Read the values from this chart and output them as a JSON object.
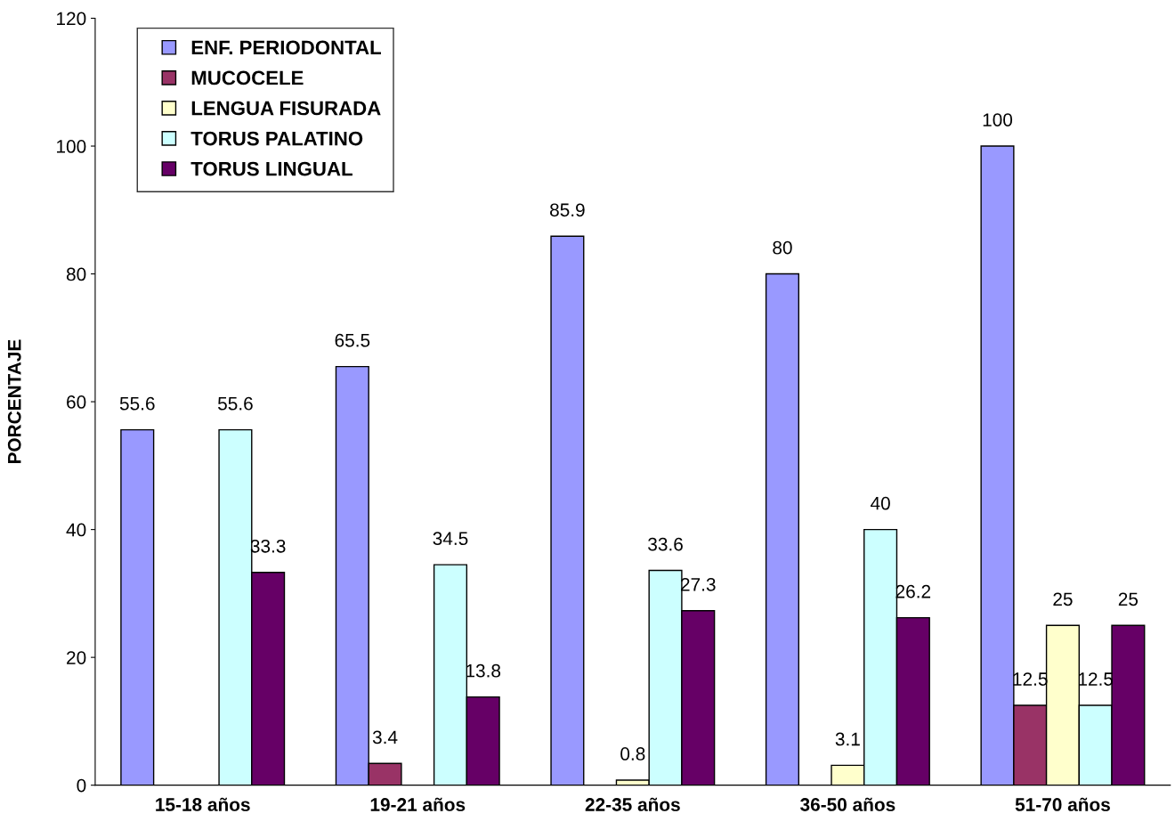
{
  "chart_data": {
    "type": "bar",
    "ylabel": "PORCENTAJE",
    "categories": [
      "15-18 años",
      "19-21 años",
      "22-35 años",
      "36-50 años",
      "51-70 años"
    ],
    "series": [
      {
        "name": "ENF. PERIODONTAL",
        "color": "#9999ff",
        "values": [
          55.6,
          65.5,
          85.9,
          80,
          100
        ]
      },
      {
        "name": "MUCOCELE",
        "color": "#993366",
        "values": [
          null,
          3.4,
          null,
          null,
          12.5
        ]
      },
      {
        "name": "LENGUA FISURADA",
        "color": "#ffffcc",
        "values": [
          null,
          null,
          0.8,
          3.1,
          25
        ]
      },
      {
        "name": "TORUS PALATINO",
        "color": "#ccffff",
        "values": [
          55.6,
          34.5,
          33.6,
          40,
          12.5
        ]
      },
      {
        "name": "TORUS LINGUAL",
        "color": "#660066",
        "values": [
          33.3,
          13.8,
          27.3,
          26.2,
          25
        ]
      }
    ],
    "ylim": [
      0,
      120
    ],
    "yticks": [
      0,
      20,
      40,
      60,
      80,
      100,
      120
    ],
    "grid": false,
    "legend": "top left",
    "data_labels": true
  }
}
